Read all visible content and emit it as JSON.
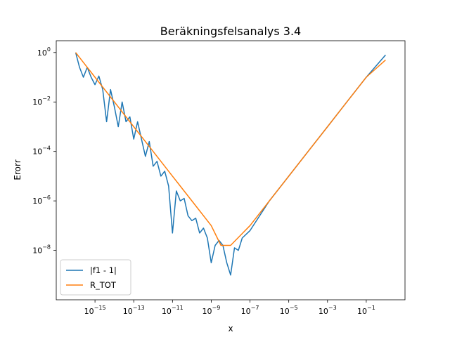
{
  "chart_data": {
    "type": "line",
    "title": "Beräkningsfelsanalys 3.4",
    "xlabel": "x",
    "ylabel": "Erorr",
    "xscale": "log",
    "yscale": "log",
    "xlim": [
      1e-17,
      10
    ],
    "ylim": [
      1e-10,
      3
    ],
    "grid": false,
    "legend_position": "lower-left",
    "x_ticks": [
      {
        "value": 1e-15,
        "base": "10",
        "exp": "−15"
      },
      {
        "value": 1e-13,
        "base": "10",
        "exp": "−13"
      },
      {
        "value": 1e-11,
        "base": "10",
        "exp": "−11"
      },
      {
        "value": 1e-09,
        "base": "10",
        "exp": "−9"
      },
      {
        "value": 1e-07,
        "base": "10",
        "exp": "−7"
      },
      {
        "value": 1e-05,
        "base": "10",
        "exp": "−5"
      },
      {
        "value": 0.001,
        "base": "10",
        "exp": "−3"
      },
      {
        "value": 0.1,
        "base": "10",
        "exp": "−1"
      }
    ],
    "y_ticks": [
      {
        "value": 1,
        "base": "10",
        "exp": "0"
      },
      {
        "value": 0.01,
        "base": "10",
        "exp": "−2"
      },
      {
        "value": 0.0001,
        "base": "10",
        "exp": "−4"
      },
      {
        "value": 1e-06,
        "base": "10",
        "exp": "−6"
      },
      {
        "value": 1e-08,
        "base": "10",
        "exp": "−8"
      }
    ],
    "series": [
      {
        "name": "|f1 - 1|",
        "color": "#1f77b4",
        "x_log10": [
          -16.0,
          -15.8,
          -15.6,
          -15.4,
          -15.2,
          -15.0,
          -14.8,
          -14.6,
          -14.4,
          -14.2,
          -14.0,
          -13.8,
          -13.6,
          -13.4,
          -13.2,
          -13.0,
          -12.8,
          -12.6,
          -12.4,
          -12.2,
          -12.0,
          -11.8,
          -11.6,
          -11.4,
          -11.2,
          -11.0,
          -10.8,
          -10.6,
          -10.4,
          -10.2,
          -10.0,
          -9.8,
          -9.6,
          -9.4,
          -9.2,
          -9.0,
          -8.8,
          -8.6,
          -8.4,
          -8.2,
          -8.0,
          -7.8,
          -7.6,
          -7.4,
          -7.0,
          -6.0,
          -5.0,
          -4.0,
          -3.0,
          -2.0,
          -1.0,
          0.0
        ],
        "y_log10": [
          0.0,
          -0.6,
          -1.0,
          -0.6,
          -1.0,
          -1.3,
          -0.95,
          -1.5,
          -2.8,
          -1.5,
          -2.2,
          -3.0,
          -2.0,
          -2.8,
          -2.6,
          -3.5,
          -2.8,
          -3.5,
          -4.2,
          -3.6,
          -4.6,
          -4.4,
          -5.0,
          -4.8,
          -5.4,
          -7.3,
          -5.6,
          -6.0,
          -5.9,
          -6.6,
          -6.8,
          -6.7,
          -7.3,
          -7.1,
          -7.5,
          -8.5,
          -7.8,
          -7.6,
          -7.8,
          -8.5,
          -9.0,
          -7.9,
          -8.0,
          -7.5,
          -7.2,
          -6.0,
          -5.0,
          -4.0,
          -3.0,
          -2.0,
          -1.0,
          -0.1
        ]
      },
      {
        "name": "R_TOT",
        "color": "#ff7f0e",
        "x_log10": [
          -16.0,
          -15.0,
          -14.0,
          -13.0,
          -12.0,
          -11.0,
          -10.0,
          -9.0,
          -8.5,
          -8.0,
          -7.5,
          -7.0,
          -6.0,
          -5.0,
          -4.0,
          -3.0,
          -2.0,
          -1.0,
          0.0
        ],
        "y_log10": [
          0.0,
          -1.0,
          -2.0,
          -3.0,
          -4.0,
          -5.0,
          -6.0,
          -7.0,
          -7.8,
          -7.8,
          -7.4,
          -7.0,
          -6.0,
          -5.0,
          -4.0,
          -3.0,
          -2.0,
          -1.0,
          -0.3
        ]
      }
    ]
  }
}
